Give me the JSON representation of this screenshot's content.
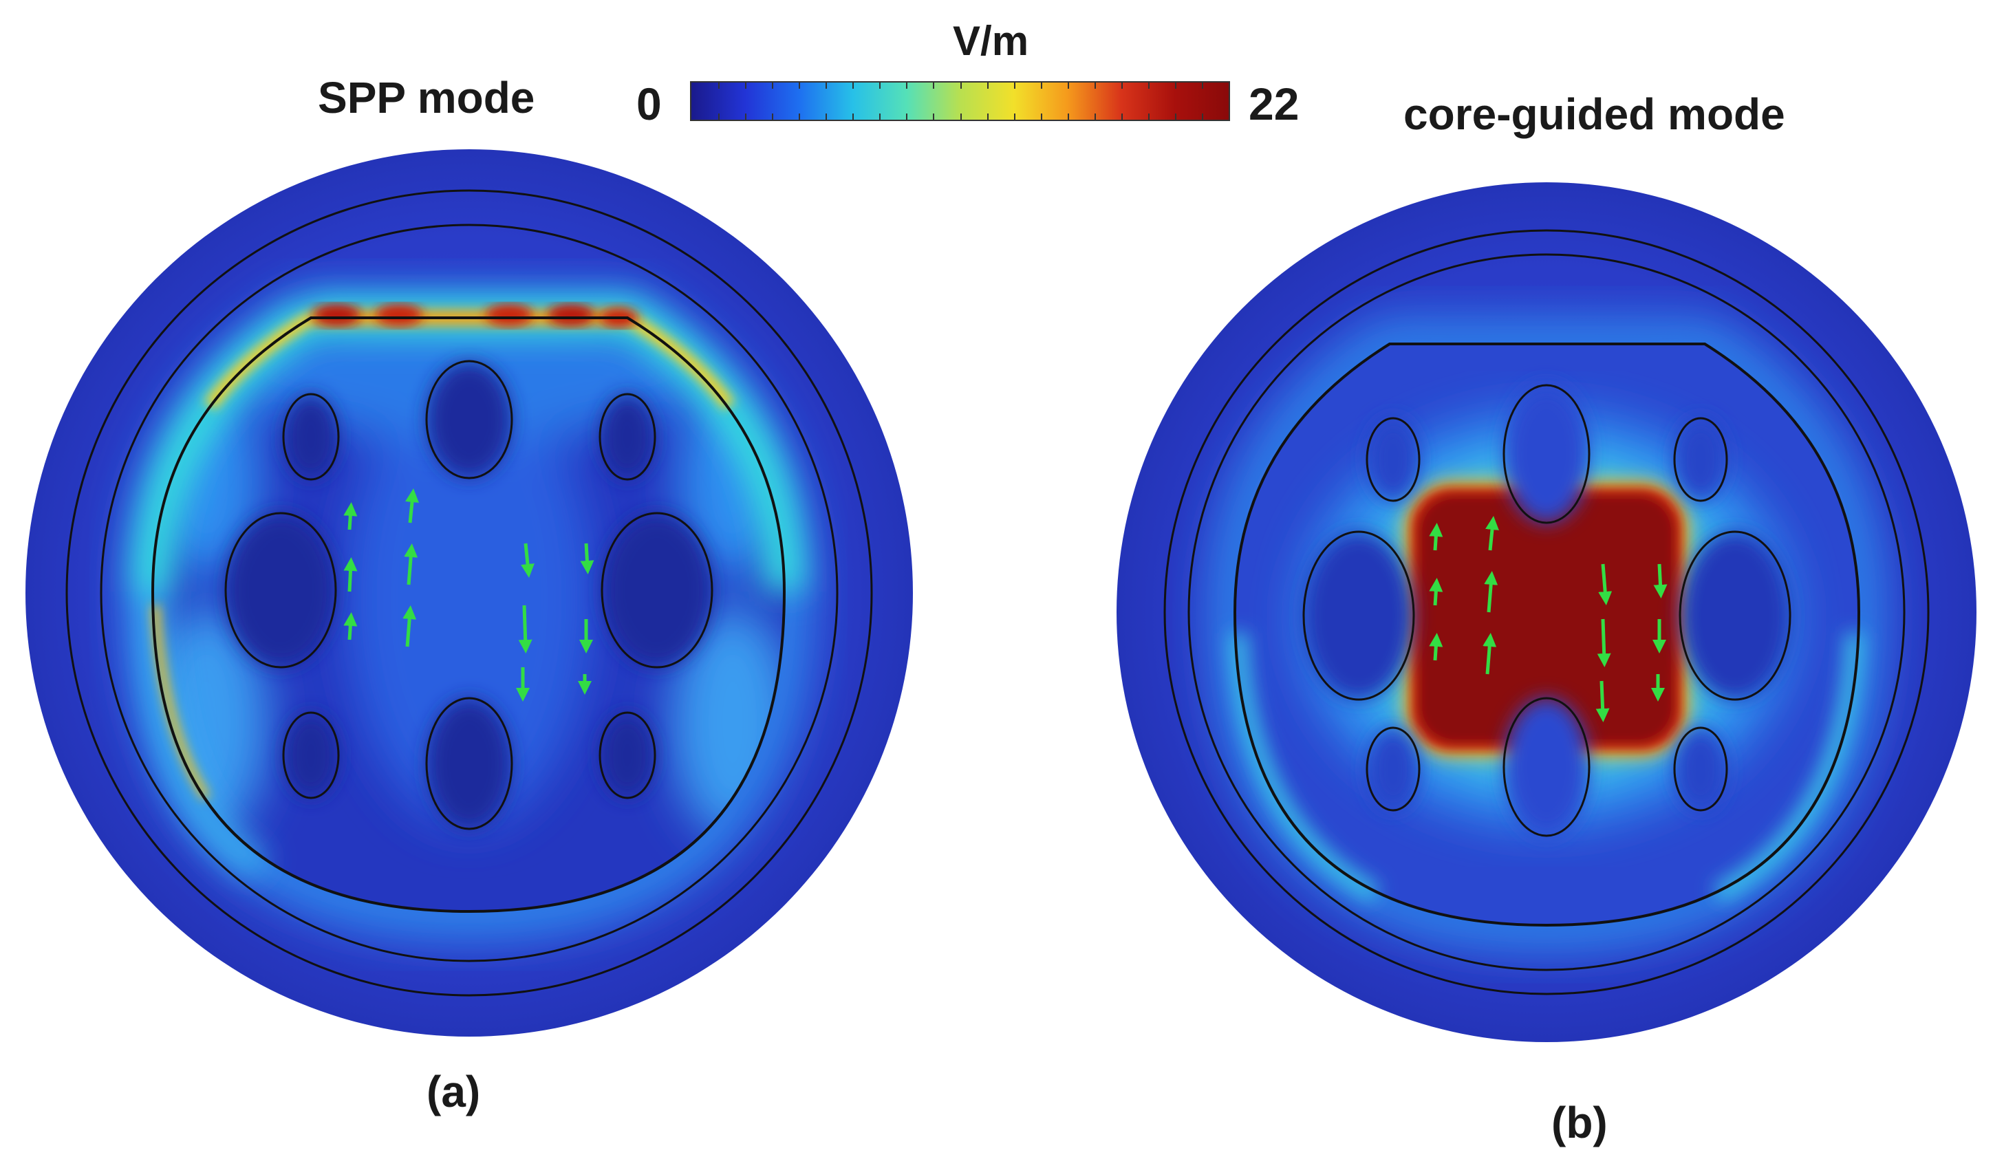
{
  "colorbar": {
    "unit": "V/m",
    "min": "0",
    "max": "22",
    "stops": [
      "#1a1a8c",
      "#2234d6",
      "#1e6ff0",
      "#27c0e8",
      "#55e0b8",
      "#b8e050",
      "#f2e02a",
      "#f59a1c",
      "#d8341a",
      "#a8100c",
      "#8a0a0a"
    ]
  },
  "panels": {
    "a": {
      "title": "SPP mode",
      "caption": "(a)"
    },
    "b": {
      "title": "core-guided mode",
      "caption": "(b)"
    }
  },
  "colors": {
    "background_field": "#2a3cc8",
    "low_field": "#1c2a9c",
    "high_field": "#8a0a0a",
    "arrow": "#33dd44",
    "outline": "#111111"
  }
}
